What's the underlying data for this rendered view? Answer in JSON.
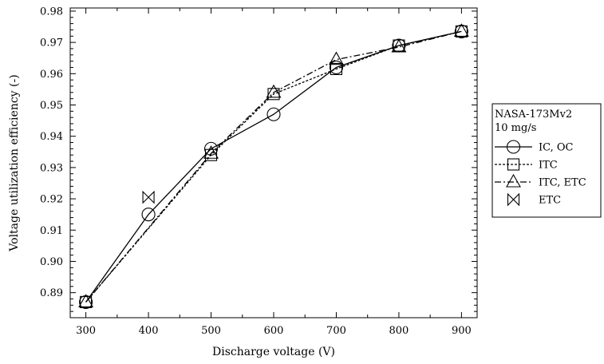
{
  "chart_data": {
    "type": "line",
    "xlabel": "Discharge voltage (V)",
    "ylabel": "Voltage utilization efficiency (-)",
    "xlim": [
      275,
      925
    ],
    "ylim": [
      0.882,
      0.981
    ],
    "x_ticks": [
      300,
      400,
      500,
      600,
      700,
      800,
      900
    ],
    "x_tick_labels": [
      "300",
      "400",
      "500",
      "600",
      "700",
      "800",
      "900"
    ],
    "y_ticks": [
      0.89,
      0.9,
      0.91,
      0.92,
      0.93,
      0.94,
      0.95,
      0.96,
      0.97,
      0.98
    ],
    "y_tick_labels": [
      "0.89",
      "0.90",
      "0.91",
      "0.92",
      "0.93",
      "0.94",
      "0.95",
      "0.96",
      "0.97",
      "0.98"
    ],
    "grid": false,
    "legend": {
      "position": "right",
      "title": "NASA-173Mv2",
      "subtitle": "10 mg/s"
    },
    "series": [
      {
        "name": "IC, OC",
        "marker": "circle",
        "line_style": "solid",
        "color": "#000000",
        "x": [
          300,
          400,
          500,
          600,
          700,
          800,
          900
        ],
        "y": [
          0.887,
          0.915,
          0.936,
          0.947,
          0.962,
          0.969,
          0.9735
        ]
      },
      {
        "name": "ITC",
        "marker": "square",
        "line_style": "dotted",
        "color": "#000000",
        "x": [
          300,
          500,
          600,
          700,
          800,
          900
        ],
        "y": [
          0.887,
          0.934,
          0.9535,
          0.9615,
          0.969,
          0.9735
        ]
      },
      {
        "name": "ITC, ETC",
        "marker": "triangle",
        "line_style": "dashdot",
        "color": "#000000",
        "x": [
          300,
          500,
          600,
          700,
          800,
          900
        ],
        "y": [
          0.887,
          0.9345,
          0.954,
          0.9645,
          0.9685,
          0.9735
        ]
      },
      {
        "name": "ETC",
        "marker": "bowtie",
        "line_style": "none",
        "color": "#000000",
        "x": [
          400
        ],
        "y": [
          0.9205
        ]
      }
    ]
  }
}
